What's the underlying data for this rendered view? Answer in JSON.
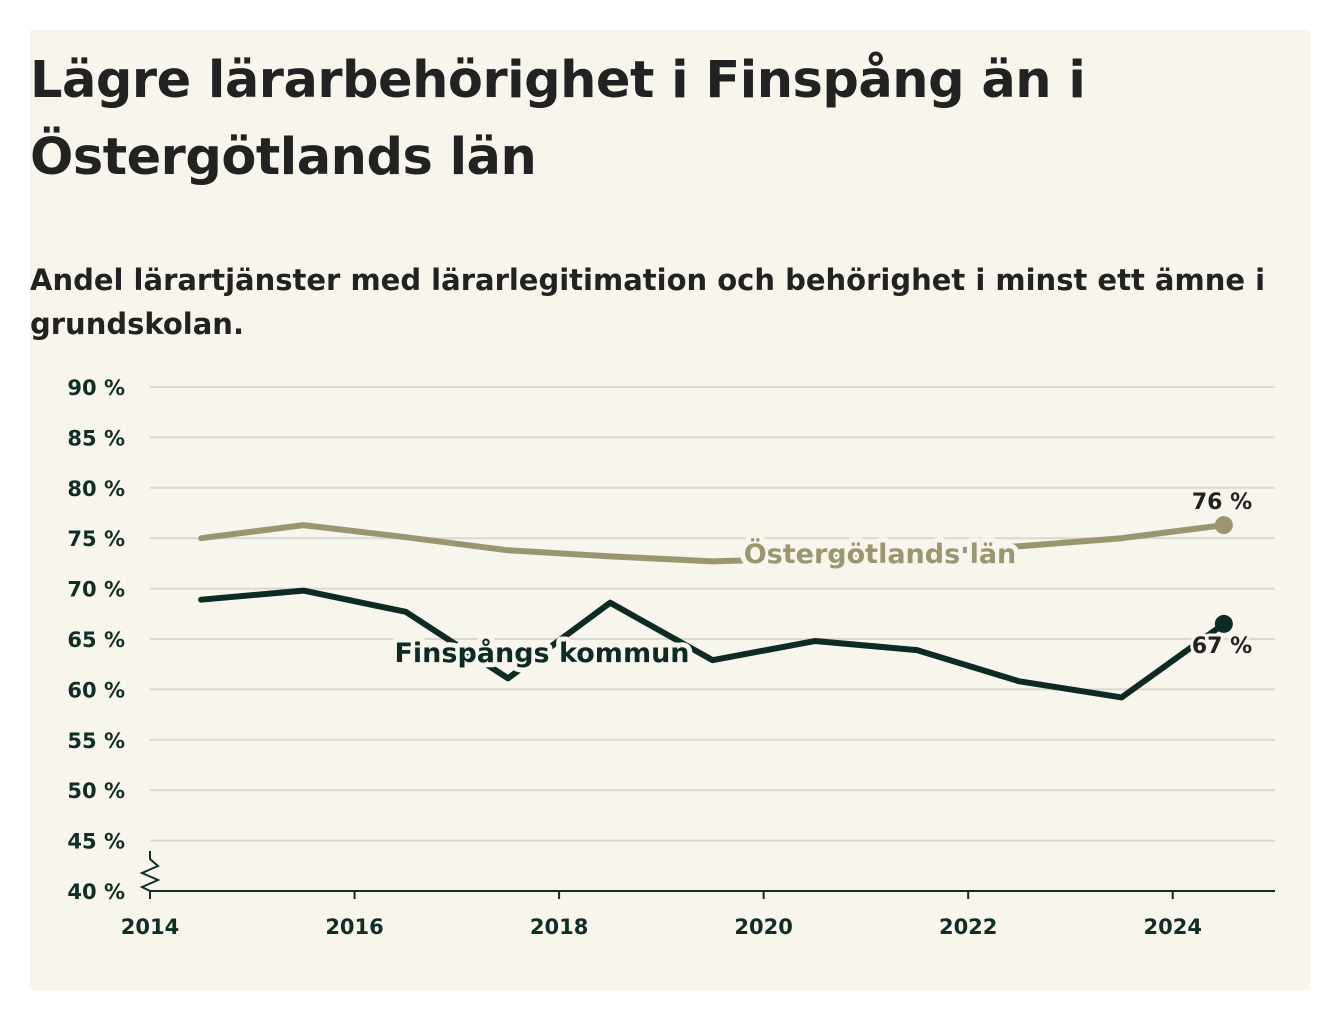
{
  "title": "Lägre lärarbehörighet i Finspång än i Östergötlands län",
  "subtitle": "Andel lärartjänster med lärarlegitimation och behörighet i minst ett ämne i grundskolan.",
  "chart_data": {
    "type": "line",
    "title": "Lägre lärarbehörighet i Finspång än i Östergötlands län",
    "subtitle": "Andel lärartjänster med lärarlegitimation och behörighet i minst ett ämne i grundskolan.",
    "xlabel": "",
    "ylabel": "",
    "xlim": [
      2014,
      2025
    ],
    "ylim": [
      40,
      90
    ],
    "x_ticks": [
      2014,
      2016,
      2018,
      2020,
      2022,
      2024
    ],
    "x_tick_labels": [
      "2014",
      "2016",
      "2018",
      "2020",
      "2022",
      "2024"
    ],
    "y_ticks": [
      40,
      45,
      50,
      55,
      60,
      65,
      70,
      75,
      80,
      85,
      90
    ],
    "y_tick_labels": [
      "40 %",
      "45 %",
      "50 %",
      "55 %",
      "60 %",
      "65 %",
      "70 %",
      "75 %",
      "80 %",
      "85 %",
      "90 %"
    ],
    "grid": true,
    "axis_break": true,
    "series": [
      {
        "name": "Östergötlands län",
        "color": "#9c9670",
        "x": [
          2014.5,
          2015.5,
          2016.5,
          2017.5,
          2018.5,
          2019.5,
          2020.5,
          2021.5,
          2022.5,
          2023.5,
          2024.5
        ],
        "y": [
          75.0,
          76.3,
          75.1,
          73.8,
          73.2,
          72.7,
          73.0,
          73.5,
          74.2,
          75.0,
          76.3
        ],
        "end_label": "76 %"
      },
      {
        "name": "Finspångs kommun",
        "color": "#0d2b24",
        "x": [
          2014.5,
          2015.5,
          2016.5,
          2017.5,
          2018.5,
          2019.5,
          2020.5,
          2021.5,
          2022.5,
          2023.5,
          2024.5
        ],
        "y": [
          68.9,
          69.8,
          67.7,
          61.1,
          68.6,
          62.9,
          64.8,
          63.9,
          60.8,
          59.2,
          66.5
        ],
        "end_label": "67 %"
      }
    ]
  }
}
